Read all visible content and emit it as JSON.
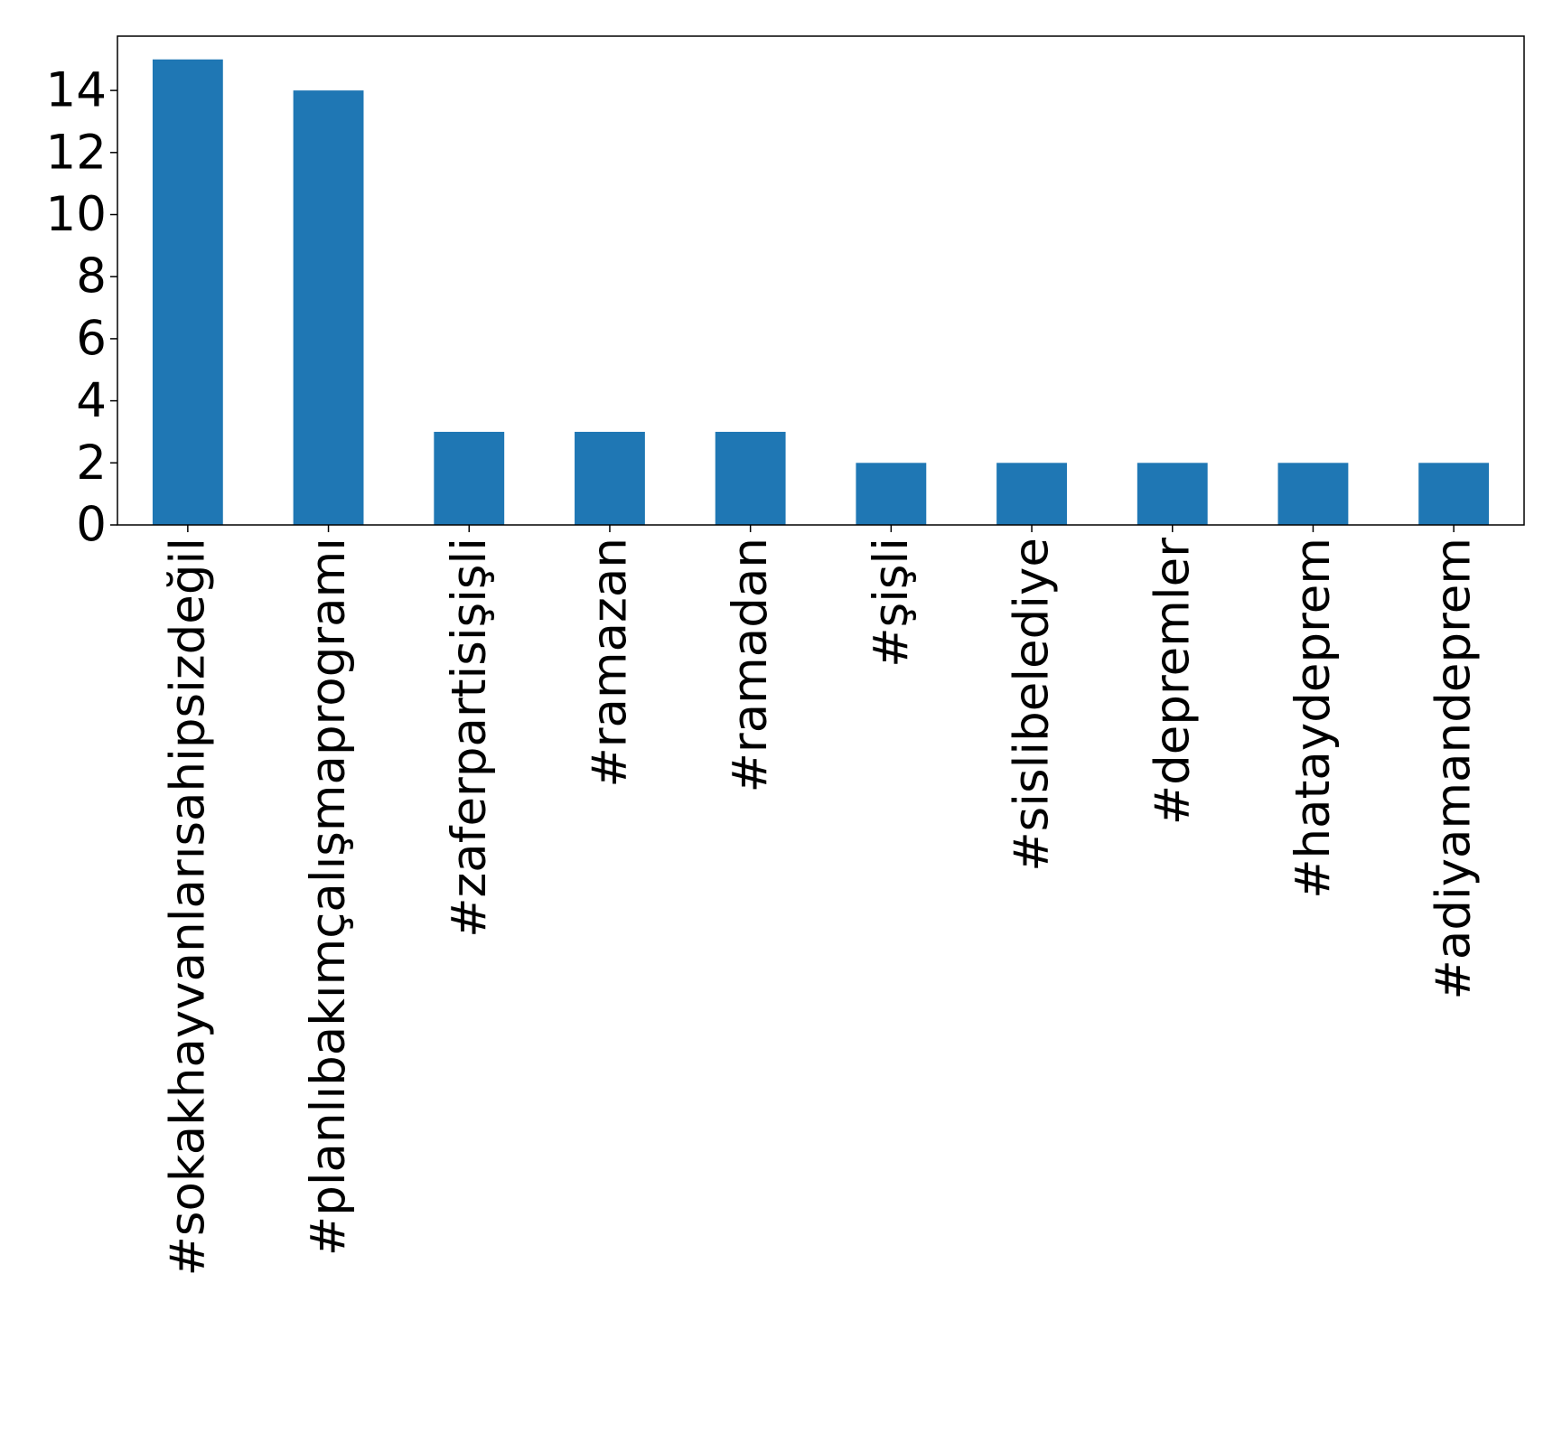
{
  "chart_data": {
    "type": "bar",
    "title": "",
    "xlabel": "",
    "ylabel": "",
    "categories": [
      "#sokakhayvanlarısahipsizdeğil",
      "#planlıbakımçalışmaprogramı",
      "#zaferpartisişişli",
      "#ramazan",
      "#ramadan",
      "#şişli",
      "#sislibelediye",
      "#depremler",
      "#hataydeprem",
      "#adiyamandeprem"
    ],
    "values": [
      15,
      14,
      3,
      3,
      3,
      2,
      2,
      2,
      2,
      2
    ],
    "ylim": [
      0,
      15.75
    ],
    "yticks": [
      0,
      2,
      4,
      6,
      8,
      10,
      12,
      14
    ],
    "grid": false,
    "legend": "none",
    "colors": {
      "bar": "#1f77b4",
      "axis": "#000000",
      "background": "#ffffff"
    }
  }
}
